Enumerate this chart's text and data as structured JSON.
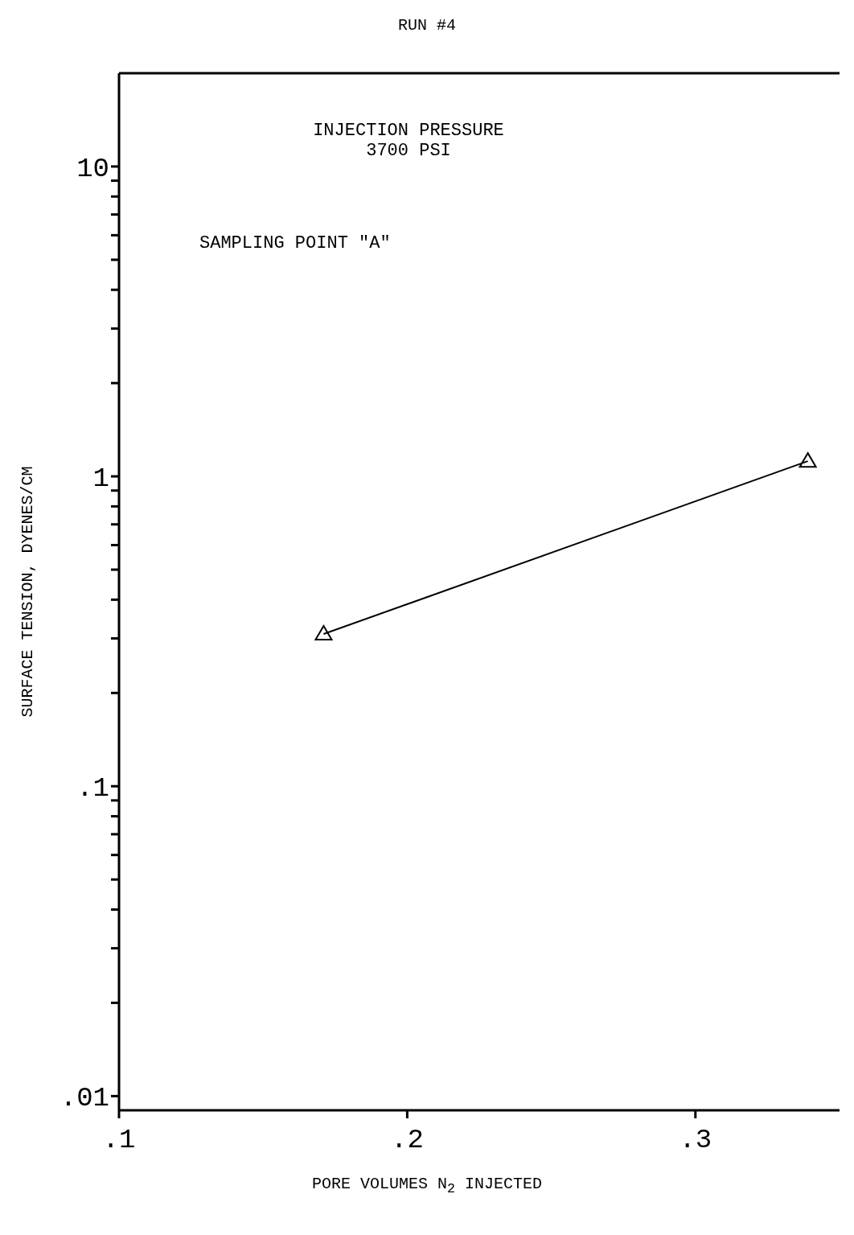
{
  "chart_data": {
    "type": "line",
    "title": "RUN #4",
    "xlabel": "PORE VOLUMES N$_{2}$ INJECTED",
    "ylabel": "SURFACE TENSION, DYENES/CM",
    "annotations": [
      "INJECTION PRESSURE\n3700 PSI",
      "SAMPLING POINT \"A\""
    ],
    "x": [
      0.171,
      0.339
    ],
    "series": [
      {
        "color": "#000000",
        "values": [
          0.31,
          1.12
        ]
      }
    ],
    "log": "y",
    "marker": "triangle",
    "line_style": "solid",
    "grid": false,
    "xlim": [
      0.1,
      0.35
    ],
    "xticks": [
      {
        "value": 0.1,
        "label": ".1"
      },
      {
        "value": 0.2,
        "label": ".2"
      },
      {
        "value": 0.3,
        "label": ".3"
      }
    ],
    "ylim": [
      0.009,
      20
    ],
    "yticks": [
      {
        "value": 0.01,
        "label": ".01"
      },
      {
        "value": 0.02,
        "label": null
      },
      {
        "value": 0.03,
        "label": null
      },
      {
        "value": 0.04,
        "label": null
      },
      {
        "value": 0.05,
        "label": null
      },
      {
        "value": 0.06,
        "label": null
      },
      {
        "value": 0.07,
        "label": null
      },
      {
        "value": 0.08,
        "label": null
      },
      {
        "value": 0.09,
        "label": null
      },
      {
        "value": 0.1,
        "label": ".1"
      },
      {
        "value": 0.2,
        "label": null
      },
      {
        "value": 0.3,
        "label": null
      },
      {
        "value": 0.4,
        "label": null
      },
      {
        "value": 0.5,
        "label": null
      },
      {
        "value": 0.6,
        "label": null
      },
      {
        "value": 0.7,
        "label": null
      },
      {
        "value": 0.8,
        "label": null
      },
      {
        "value": 0.9,
        "label": null
      },
      {
        "value": 1,
        "label": "1"
      },
      {
        "value": 2,
        "label": null
      },
      {
        "value": 3,
        "label": null
      },
      {
        "value": 4,
        "label": null
      },
      {
        "value": 5,
        "label": null
      },
      {
        "value": 6,
        "label": null
      },
      {
        "value": 7,
        "label": null
      },
      {
        "value": 8,
        "label": null
      },
      {
        "value": 9,
        "label": null
      },
      {
        "value": 10,
        "label": "10"
      }
    ]
  }
}
